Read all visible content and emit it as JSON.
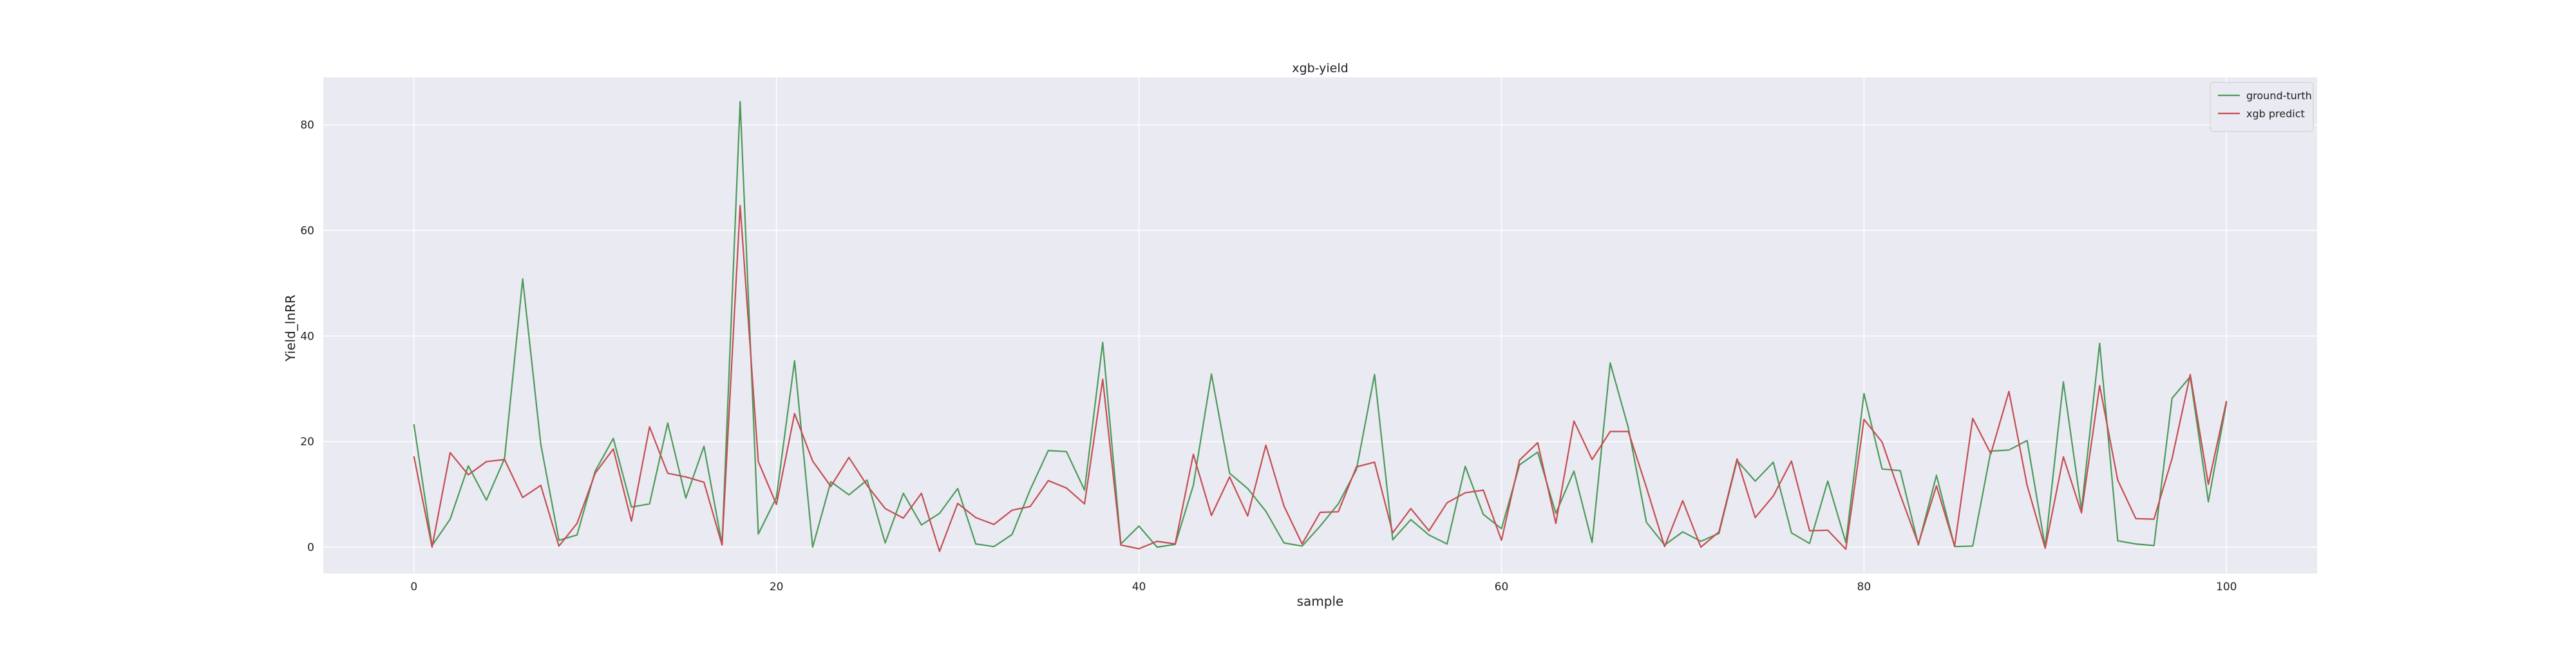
{
  "chart_data": {
    "type": "line",
    "title": "xgb-yield",
    "xlabel": "sample",
    "ylabel": "Yield_lnRR",
    "xlim": [
      -5,
      105
    ],
    "ylim": [
      -5,
      89
    ],
    "xticks": [
      0,
      20,
      40,
      60,
      80,
      100
    ],
    "yticks": [
      0,
      20,
      40,
      60,
      80
    ],
    "grid": true,
    "legend_position": "top-right",
    "background": "#eaeaf2",
    "x": [
      0,
      1,
      2,
      3,
      4,
      5,
      6,
      7,
      8,
      9,
      10,
      11,
      12,
      13,
      14,
      15,
      16,
      17,
      18,
      19,
      20,
      21,
      22,
      23,
      24,
      25,
      26,
      27,
      28,
      29,
      30,
      31,
      32,
      33,
      34,
      35,
      36,
      37,
      38,
      39,
      40,
      41,
      42,
      43,
      44,
      45,
      46,
      47,
      48,
      49,
      50,
      51,
      52,
      53,
      54,
      55,
      56,
      57,
      58,
      59,
      60,
      61,
      62,
      63,
      64,
      65,
      66,
      67,
      68,
      69,
      70,
      71,
      72,
      73,
      74,
      75,
      76,
      77,
      78,
      79,
      80,
      81,
      82,
      83,
      84,
      85,
      86,
      87,
      88,
      89,
      90,
      91,
      92,
      93,
      94,
      95,
      96,
      97,
      98,
      99,
      100
    ],
    "series": [
      {
        "name": "ground-turth",
        "color": "#4c9a5a",
        "values": [
          23.3,
          0.3,
          5.3,
          15.4,
          8.9,
          16.8,
          50.8,
          19.5,
          1.3,
          2.3,
          14.4,
          20.6,
          7.6,
          8.2,
          23.5,
          9.3,
          19.1,
          0.5,
          84.4,
          2.5,
          9.4,
          35.3,
          0.0,
          12.4,
          9.9,
          12.7,
          0.8,
          10.2,
          4.2,
          6.4,
          11.1,
          0.6,
          0.1,
          2.4,
          10.9,
          18.3,
          18.1,
          10.8,
          38.8,
          0.6,
          4.0,
          0.0,
          0.5,
          11.7,
          32.8,
          14.0,
          11.1,
          6.8,
          0.8,
          0.2,
          4.0,
          8.2,
          14.7,
          32.7,
          1.4,
          5.2,
          2.3,
          0.6,
          15.3,
          6.2,
          3.5,
          15.6,
          18.0,
          6.4,
          14.4,
          0.9,
          34.9,
          22.6,
          4.7,
          0.4,
          2.9,
          1.1,
          2.6,
          16.4,
          12.5,
          16.1,
          2.7,
          0.7,
          12.5,
          0.9,
          29.1,
          14.8,
          14.5,
          0.4,
          13.6,
          0.1,
          0.2,
          18.2,
          18.4,
          20.2,
          0.0,
          31.3,
          7.1,
          38.6,
          1.2,
          0.6,
          0.3,
          28.2,
          32.3,
          8.6,
          27.4
        ]
      },
      {
        "name": "xgb predict",
        "color": "#c44e52",
        "values": [
          17.2,
          0.0,
          17.9,
          13.7,
          16.2,
          16.6,
          9.4,
          11.7,
          0.2,
          4.5,
          14.0,
          18.6,
          4.9,
          22.8,
          14.0,
          13.3,
          12.3,
          0.4,
          64.7,
          16.2,
          8.1,
          25.3,
          16.3,
          11.5,
          17.0,
          11.7,
          7.3,
          5.5,
          10.2,
          -0.8,
          8.3,
          5.6,
          4.3,
          7.0,
          7.7,
          12.6,
          11.2,
          8.2,
          31.8,
          0.4,
          -0.3,
          1.1,
          0.6,
          17.6,
          6.0,
          13.3,
          5.9,
          19.3,
          7.8,
          0.6,
          6.6,
          6.7,
          15.2,
          16.1,
          2.7,
          7.3,
          3.1,
          8.4,
          10.3,
          10.8,
          1.3,
          16.5,
          19.8,
          4.5,
          23.9,
          16.6,
          21.9,
          21.9,
          11.3,
          0.1,
          8.8,
          0.0,
          2.9,
          16.7,
          5.6,
          9.7,
          16.3,
          3.1,
          3.2,
          -0.4,
          24.2,
          19.9,
          9.9,
          0.6,
          11.6,
          0.2,
          24.4,
          17.7,
          29.5,
          11.7,
          -0.2,
          17.1,
          6.5,
          30.6,
          12.7,
          5.4,
          5.3,
          16.8,
          32.7,
          11.9,
          27.7
        ]
      }
    ]
  }
}
